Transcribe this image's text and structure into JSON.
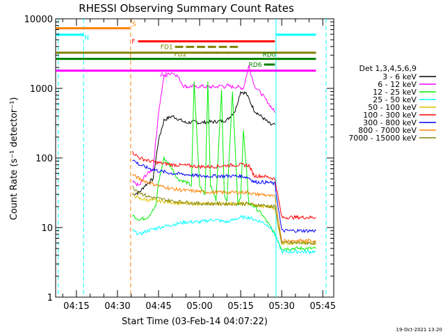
{
  "chart_data": {
    "type": "line",
    "title": "RHESSI Observing Summary Count Rates",
    "xlabel": "Start Time (03-Feb-14 04:07:22)",
    "ylabel": "Count Rate (s⁻¹ detector⁻¹)",
    "y_scale": "log",
    "ylim": [
      1,
      10000
    ],
    "xlim_minutes": [
      247.4,
      349
    ],
    "x_ticks": [
      {
        "label": "04:15",
        "minute": 255
      },
      {
        "label": "04:30",
        "minute": 270
      },
      {
        "label": "04:45",
        "minute": 285
      },
      {
        "label": "05:00",
        "minute": 300
      },
      {
        "label": "05:15",
        "minute": 315
      },
      {
        "label": "05:30",
        "minute": 330
      },
      {
        "label": "05:45",
        "minute": 345
      }
    ],
    "y_ticks": [
      {
        "label": "1",
        "value": 1
      },
      {
        "label": "10",
        "value": 10
      },
      {
        "label": "100",
        "value": 100
      },
      {
        "label": "1000",
        "value": 1000
      },
      {
        "label": "10000",
        "value": 10000
      }
    ],
    "legend_title": "Det 1,3,4,5,6,9",
    "legend_position": "right",
    "series": [
      {
        "name": "3 - 6 keV",
        "color": "#000000",
        "x": [
          275.5,
          278,
          280,
          283,
          285,
          287,
          290,
          293,
          295,
          298,
          300,
          303,
          305,
          308,
          310,
          313,
          315,
          317,
          318,
          320,
          323,
          326,
          327.5
        ],
        "y": [
          30,
          32,
          40,
          50,
          180,
          350,
          400,
          350,
          320,
          330,
          320,
          330,
          330,
          340,
          350,
          480,
          900,
          850,
          700,
          480,
          380,
          300,
          300
        ]
      },
      {
        "name": "6 - 12 keV",
        "color": "#ff00ff",
        "x": [
          275.5,
          278,
          280,
          283,
          285,
          287,
          290,
          292,
          294,
          296,
          298,
          299,
          300,
          302,
          304,
          306,
          308,
          309,
          310,
          312,
          314,
          316,
          318,
          320,
          323,
          326,
          327.5
        ],
        "y": [
          45,
          40,
          55,
          70,
          450,
          1500,
          1700,
          1500,
          1100,
          1050,
          1100,
          1000,
          1100,
          1050,
          1050,
          1050,
          1100,
          1050,
          1100,
          1050,
          1050,
          1000,
          2100,
          1100,
          800,
          550,
          450
        ]
      },
      {
        "name": "12 - 25 keV",
        "color": "#00ee00",
        "x": [
          275.5,
          278,
          281,
          284,
          285,
          287,
          290,
          292,
          295,
          297,
          298,
          300,
          302,
          303,
          304,
          306,
          308,
          309,
          310,
          312,
          314,
          315,
          316,
          318,
          320,
          323,
          326,
          327.5,
          330,
          335,
          342.5
        ],
        "y": [
          15,
          13,
          14,
          20,
          45,
          100,
          70,
          50,
          45,
          40,
          1200,
          40,
          30,
          1200,
          40,
          25,
          1000,
          30,
          25,
          900,
          20,
          28,
          250,
          22,
          20,
          15,
          10,
          8,
          5,
          5,
          5
        ]
      },
      {
        "name": "25 - 50 keV",
        "color": "#00ffff",
        "x": [
          275.5,
          278,
          281,
          285,
          290,
          295,
          300,
          305,
          310,
          315,
          318,
          320,
          323,
          326,
          327.5,
          330,
          335,
          342.5
        ],
        "y": [
          9,
          8,
          9,
          10,
          11,
          12,
          12,
          13,
          12,
          14,
          14,
          13,
          12,
          10,
          8,
          4.5,
          4.5,
          4.5
        ]
      },
      {
        "name": "50 - 100 keV",
        "color": "#e0c000",
        "x": [
          275.5,
          278,
          281,
          285,
          290,
          295,
          300,
          305,
          310,
          315,
          318,
          320,
          323,
          326,
          327.5,
          330,
          335,
          342.5
        ],
        "y": [
          30,
          26,
          25,
          24,
          23,
          22,
          22,
          22,
          22,
          22,
          22,
          21,
          20,
          20,
          19,
          6,
          6,
          6
        ]
      },
      {
        "name": "100 - 300 keV",
        "color": "#ff0000",
        "x": [
          275.5,
          278,
          281,
          285,
          290,
          295,
          300,
          305,
          310,
          315,
          318,
          320,
          323,
          326,
          327.5,
          330,
          335,
          342.5
        ],
        "y": [
          120,
          100,
          92,
          85,
          80,
          78,
          75,
          75,
          78,
          80,
          78,
          55,
          55,
          52,
          50,
          14,
          14,
          14
        ]
      },
      {
        "name": "300 - 800 keV",
        "color": "#0000ff",
        "x": [
          275.5,
          278,
          281,
          285,
          290,
          295,
          300,
          305,
          310,
          315,
          318,
          320,
          323,
          326,
          327.5,
          330,
          335,
          342.5
        ],
        "y": [
          95,
          80,
          72,
          65,
          60,
          58,
          55,
          55,
          55,
          55,
          52,
          45,
          45,
          44,
          42,
          9,
          9,
          9
        ]
      },
      {
        "name": "800 - 7000 keV",
        "color": "#ff8000",
        "x": [
          275.5,
          278,
          281,
          285,
          290,
          295,
          300,
          305,
          310,
          315,
          318,
          320,
          323,
          326,
          327.5,
          330,
          335,
          342.5
        ],
        "y": [
          58,
          50,
          45,
          40,
          36,
          34,
          33,
          32,
          32,
          32,
          32,
          30,
          30,
          28,
          28,
          6.5,
          6.5,
          6.5
        ]
      },
      {
        "name": "7000 - 15000 keV",
        "color": "#808000",
        "x": [
          275.5,
          278,
          281,
          285,
          290,
          295,
          300,
          305,
          310,
          315,
          318,
          320,
          323,
          326,
          327.5,
          330,
          335,
          342.5
        ],
        "y": [
          38,
          32,
          28,
          26,
          24,
          23,
          22,
          22,
          22,
          22,
          22,
          21,
          21,
          20,
          20,
          6,
          6,
          6
        ]
      }
    ],
    "vertical_markers": [
      {
        "minute": 248.4,
        "color": "#00ffff",
        "style": "dashed"
      },
      {
        "minute": 257.6,
        "color": "#00ffff",
        "style": "dashed"
      },
      {
        "minute": 274.8,
        "color": "#ff8000",
        "style": "dashed"
      },
      {
        "minute": 327.9,
        "color": "#00ffff",
        "style": "solid"
      },
      {
        "minute": 346.2,
        "color": "#00ffff",
        "style": "dashed"
      }
    ],
    "flag_bars": [
      {
        "label": "S",
        "color": "#ff8000",
        "segments": [
          [
            247.4,
            274.5
          ]
        ],
        "level": 7300,
        "width": 3
      },
      {
        "label": "N",
        "color": "#00ffff",
        "segments": [
          [
            247.4,
            257.6
          ],
          [
            328,
            342.5
          ]
        ],
        "level": 5900,
        "width": 3
      },
      {
        "label": "F",
        "color": "#ff0000",
        "segments": [
          [
            277.5,
            327.5
          ]
        ],
        "level": 4750,
        "width": 3
      },
      {
        "label": "FD1",
        "color": "#808000",
        "segments": [
          [
            291,
            294
          ],
          [
            295,
            298
          ],
          [
            299,
            302
          ],
          [
            303,
            306
          ],
          [
            307,
            310
          ],
          [
            311,
            314
          ]
        ],
        "level": 3950,
        "width": 3
      },
      {
        "label": "FD2",
        "color": "#808000",
        "segments": [
          [
            247.4,
            342.5
          ],
          [
            302,
            302.5
          ],
          [
            306,
            306.5
          ],
          [
            310,
            310.5
          ]
        ],
        "level": 3250,
        "width": 3
      },
      {
        "label": "RD0",
        "color": "#008000",
        "segments": [
          [
            247.4,
            342.5
          ]
        ],
        "level": 2650,
        "width": 3
      },
      {
        "label": "RD6",
        "color": "#008000",
        "segments": [
          [
            323.5,
            327.5
          ]
        ],
        "level": 2200,
        "width": 3
      },
      {
        "label": "A1",
        "color": "#ff00ff",
        "segments": [
          [
            247.4,
            342.5
          ]
        ],
        "level": 1800,
        "width": 3
      }
    ],
    "timestamp": "19-Oct-2021 13:20"
  }
}
